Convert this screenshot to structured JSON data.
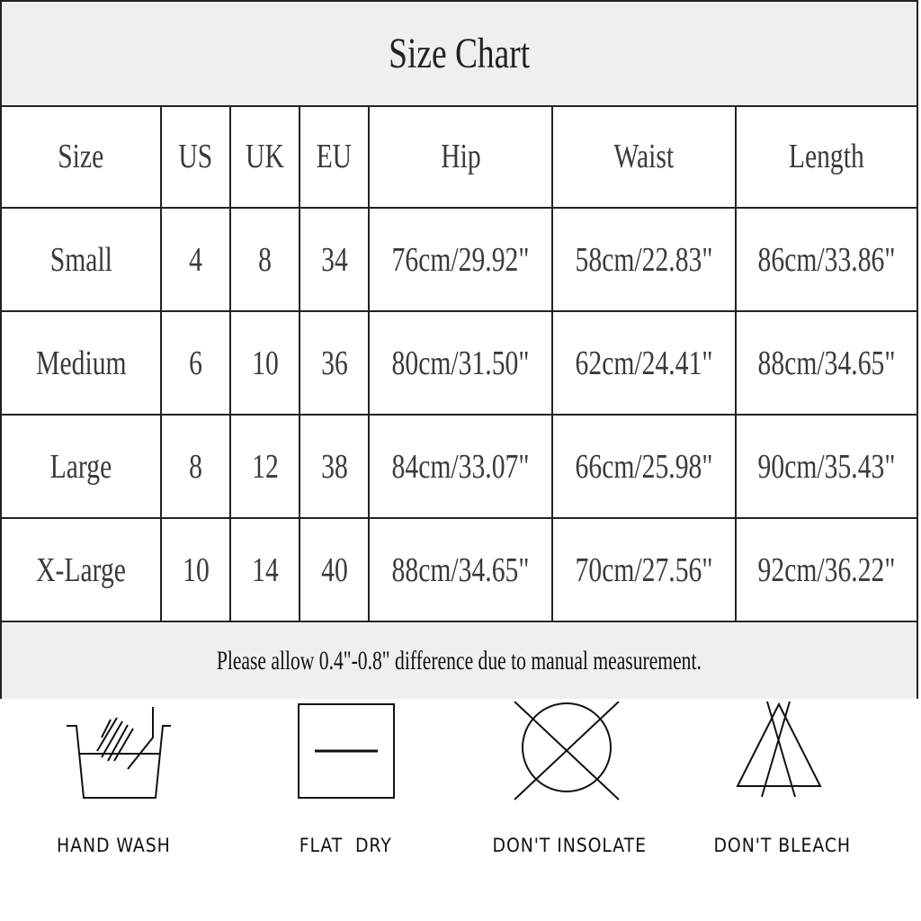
{
  "title": "Size Chart",
  "headers": [
    "Size",
    "US",
    "UK",
    "EU",
    "Hip",
    "Waist",
    "Length"
  ],
  "rows": [
    [
      "Small",
      "4",
      "8",
      "34",
      "76cm/29.92\"",
      "58cm/22.83\"",
      "86cm/33.86\""
    ],
    [
      "Medium",
      "6",
      "10",
      "36",
      "80cm/31.50\"",
      "62cm/24.41\"",
      "88cm/34.65\""
    ],
    [
      "Large",
      "8",
      "12",
      "38",
      "84cm/33.07\"",
      "66cm/25.98\"",
      "90cm/35.43\""
    ],
    [
      "X-Large",
      "10",
      "14",
      "40",
      "88cm/34.65\"",
      "70cm/27.56\"",
      "92cm/36.22\""
    ]
  ],
  "note": "Please allow 0.4\"-0.8\" difference due to manual measurement.",
  "care": [
    {
      "icon": "hand-wash-icon",
      "label": "HAND WASH"
    },
    {
      "icon": "flat-dry-icon",
      "label": "FLAT  DRY"
    },
    {
      "icon": "dont-insolate-icon",
      "label": "DON'T INSOLATE"
    },
    {
      "icon": "dont-bleach-icon",
      "label": "DON'T BLEACH"
    }
  ]
}
